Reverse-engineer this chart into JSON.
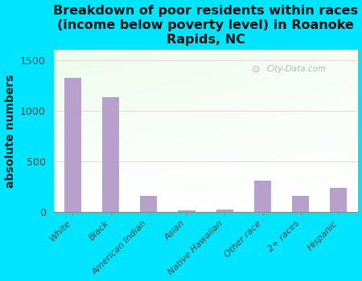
{
  "title": "Breakdown of poor residents within races\n(income below poverty level) in Roanoke\nRapids, NC",
  "categories": [
    "White",
    "Black",
    "American Indian",
    "Asian",
    "Native Hawaiian",
    "Other race",
    "2+ races",
    "Hispanic"
  ],
  "values": [
    1320,
    1130,
    155,
    15,
    25,
    310,
    155,
    235
  ],
  "bar_color": "#b8a0cc",
  "ylabel": "absolute numbers",
  "ylim": [
    0,
    1600
  ],
  "yticks": [
    0,
    500,
    1000,
    1500
  ],
  "background_color": "#00e5ff",
  "grid_color": "#e8b8b8",
  "watermark": "City-Data.com",
  "title_fontsize": 11.5,
  "ylabel_fontsize": 10,
  "bar_width": 0.45
}
